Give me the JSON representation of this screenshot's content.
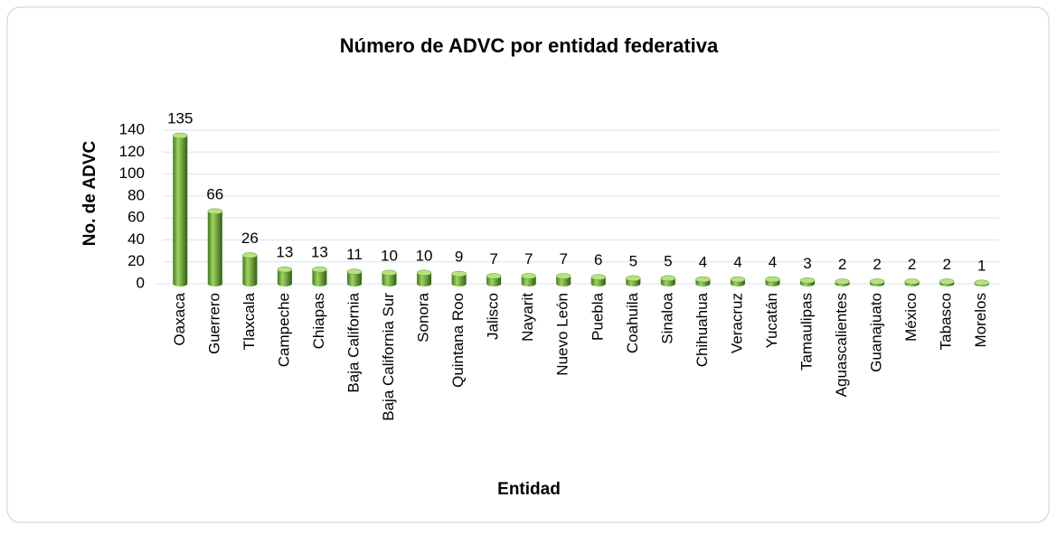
{
  "chart_data": {
    "type": "bar",
    "title": "Número de ADVC por entidad federativa",
    "x_label": "Entidad",
    "y_label": "No. de ADVC",
    "categories": [
      "Oaxaca",
      "Guerrero",
      "Tlaxcala",
      "Campeche",
      "Chiapas",
      "Baja California",
      "Baja California Sur",
      "Sonora",
      "Quintana Roo",
      "Jalisco",
      "Nayarit",
      "Nuevo León",
      "Puebla",
      "Coahuila",
      "Sinaloa",
      "Chihuahua",
      "Veracruz",
      "Yucatán",
      "Tamaulipas",
      "Aguascalientes",
      "Guanajuato",
      "México",
      "Tabasco",
      "Morelos"
    ],
    "values": [
      135,
      66,
      26,
      13,
      13,
      11,
      10,
      10,
      9,
      7,
      7,
      7,
      6,
      5,
      5,
      4,
      4,
      4,
      3,
      2,
      2,
      2,
      2,
      1
    ],
    "color": "#5a9a2a",
    "ylim": [
      0,
      140
    ],
    "yticks": [
      0,
      20,
      40,
      60,
      80,
      100,
      120,
      140
    ],
    "grid": true
  }
}
